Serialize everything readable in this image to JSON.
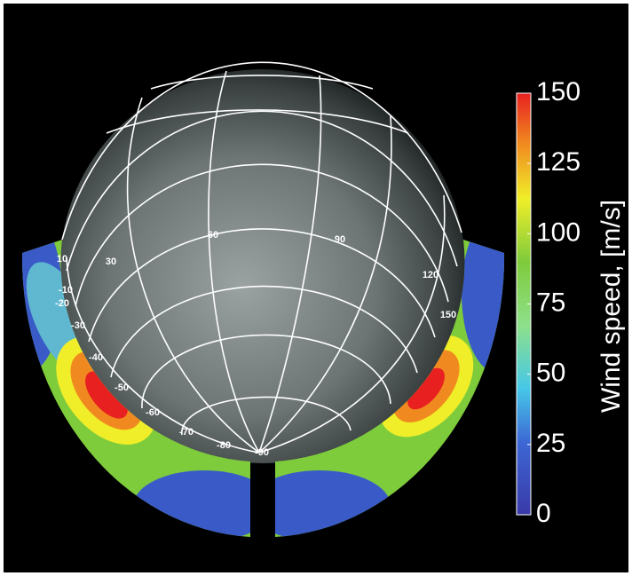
{
  "figure": {
    "colorbar": {
      "label": "Wind speed, [m/s]",
      "range": [
        0,
        150
      ],
      "ticks": [
        0,
        25,
        50,
        75,
        100,
        125,
        150
      ]
    },
    "longitude_labels": [
      "30",
      "60",
      "90",
      "120",
      "150"
    ],
    "latitude_labels": [
      "10",
      "-10",
      "-20",
      "-30",
      "-40",
      "-50",
      "-60",
      "-70",
      "-80",
      "-90"
    ]
  }
}
